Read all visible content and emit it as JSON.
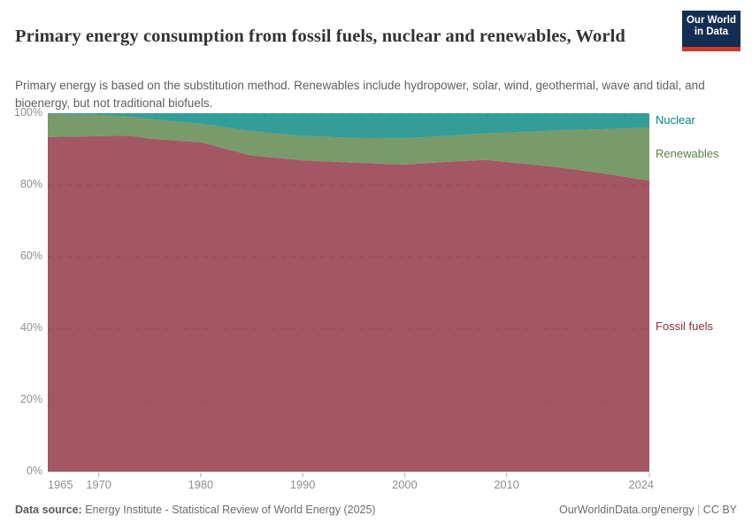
{
  "header": {
    "title": "Primary energy consumption from fossil fuels, nuclear and renewables, World",
    "subtitle": "Primary energy is based on the substitution method. Renewables include hydropower, solar, wind, geothermal, wave and tidal, and bioenergy, but not traditional biofuels.",
    "logo": {
      "line1": "Our World",
      "line2": "in Data",
      "bg_color": "#132E52",
      "bar_color": "#CE3A2D"
    }
  },
  "chart_data": {
    "type": "area",
    "stacking": "percent",
    "title": "Primary energy consumption from fossil fuels, nuclear and renewables, World",
    "x": [
      1965,
      1970,
      1973,
      1975,
      1980,
      1985,
      1990,
      1995,
      2000,
      2005,
      2008,
      2010,
      2015,
      2020,
      2024
    ],
    "series": [
      {
        "name": "Fossil fuels",
        "color": "#8C2D3C",
        "values": [
          93.4,
          93.6,
          93.8,
          92.9,
          91.9,
          88.2,
          86.9,
          86.2,
          85.7,
          86.6,
          87.0,
          86.4,
          85.0,
          83.0,
          81.2
        ]
      },
      {
        "name": "Renewables",
        "color": "#578145",
        "values": [
          6.4,
          5.9,
          5.3,
          5.5,
          5.2,
          6.8,
          6.8,
          6.9,
          7.3,
          7.3,
          7.4,
          8.2,
          10.2,
          12.6,
          14.8
        ]
      },
      {
        "name": "Nuclear",
        "color": "#00847E",
        "values": [
          0.2,
          0.5,
          0.9,
          1.6,
          2.9,
          5.0,
          6.3,
          6.9,
          7.0,
          6.1,
          5.6,
          5.4,
          4.8,
          4.4,
          4.0
        ]
      }
    ],
    "fill_opacity": 0.8,
    "x_ticks": [
      1965,
      1970,
      1980,
      1990,
      2000,
      2010,
      2024
    ],
    "y_ticks": [
      0,
      20,
      40,
      60,
      80,
      100
    ],
    "y_tick_suffix": "%",
    "xlim": [
      1965,
      2024
    ],
    "ylim": [
      0,
      100
    ],
    "grid": "horizontal-dashed",
    "legend_position": "right-inline-labels"
  },
  "footer": {
    "source_label": "Data source:",
    "source_text": " Energy Institute - Statistical Review of World Energy (2025)",
    "url_text": "OurWorldinData.org/energy",
    "separator": " | ",
    "license_text": "CC BY"
  },
  "colors": {
    "axis_text": "#8F8F8F",
    "gridline": "#1d1d1d",
    "x_tick_mark": "#ababab"
  }
}
